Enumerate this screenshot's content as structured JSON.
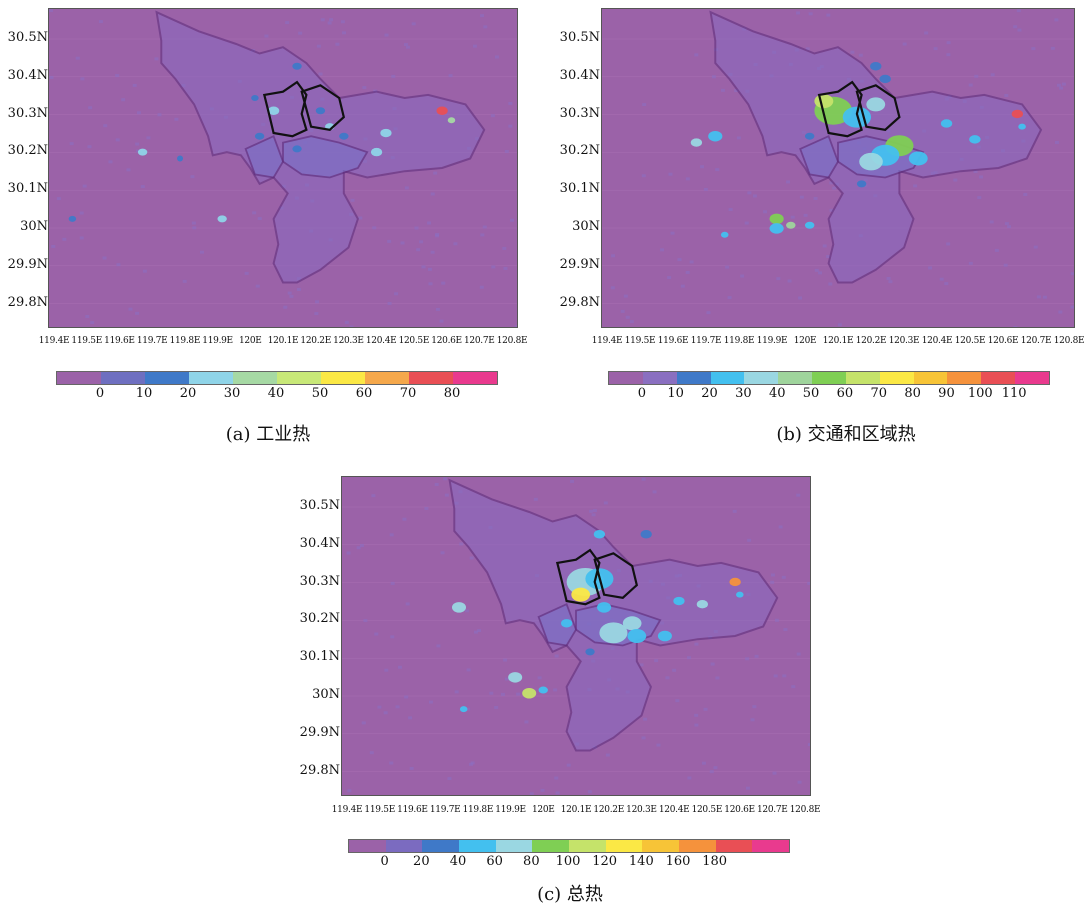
{
  "panels": [
    {
      "caption": "(a) 工业热",
      "y_labels": [
        "30.5N",
        "30.4N",
        "30.3N",
        "30.2N",
        "30.1N",
        "30N",
        "29.9N",
        "29.8N"
      ],
      "x_labels": [
        "119.4E",
        "119.5E",
        "119.6E",
        "119.7E",
        "119.8E",
        "119.9E",
        "120E",
        "120.1E",
        "120.2E",
        "120.3E",
        "120.4E",
        "120.5E",
        "120.6E",
        "120.7E",
        "120.8E"
      ],
      "colorbar_ticks": [
        "0",
        "10",
        "20",
        "30",
        "40",
        "50",
        "60",
        "70",
        "80"
      ],
      "colorbar_colors": [
        "#9b62a8",
        "#6e6fc0",
        "#3f79c8",
        "#8fd4e8",
        "#a6d9a4",
        "#c8e878",
        "#fbe845",
        "#f5a84b",
        "#e94f55",
        "#e93a8e"
      ]
    },
    {
      "caption": "(b) 交通和区域热",
      "y_labels": [
        "30.5N",
        "30.4N",
        "30.3N",
        "30.2N",
        "30.1N",
        "30N",
        "29.9N",
        "29.8N"
      ],
      "x_labels": [
        "119.4E",
        "119.5E",
        "119.6E",
        "119.7E",
        "119.8E",
        "119.9E",
        "120E",
        "120.1E",
        "120.2E",
        "120.3E",
        "120.4E",
        "120.5E",
        "120.6E",
        "120.7E",
        "120.8E"
      ],
      "colorbar_ticks": [
        "0",
        "10",
        "20",
        "30",
        "40",
        "50",
        "60",
        "70",
        "80",
        "90",
        "100",
        "110"
      ],
      "colorbar_colors": [
        "#9b62a8",
        "#8a6fc0",
        "#3f79c8",
        "#43c0ef",
        "#9ad7e2",
        "#9fd49c",
        "#7fcf54",
        "#c5e36a",
        "#fbe845",
        "#f7c437",
        "#f5923c",
        "#e94f55",
        "#e93a8e"
      ]
    },
    {
      "caption": "(c) 总热",
      "y_labels": [
        "30.5N",
        "30.4N",
        "30.3N",
        "30.2N",
        "30.1N",
        "30N",
        "29.9N",
        "29.8N"
      ],
      "x_labels": [
        "119.4E",
        "119.5E",
        "119.6E",
        "119.7E",
        "119.8E",
        "119.9E",
        "120E",
        "120.1E",
        "120.2E",
        "120.3E",
        "120.4E",
        "120.5E",
        "120.6E",
        "120.7E",
        "120.8E"
      ],
      "colorbar_ticks": [
        "0",
        "20",
        "40",
        "60",
        "80",
        "100",
        "120",
        "140",
        "160",
        "180"
      ],
      "colorbar_colors": [
        "#9b62a8",
        "#7b6bc0",
        "#3f79c8",
        "#43c0ef",
        "#9ad7e2",
        "#7fcf54",
        "#c5e36a",
        "#fbe845",
        "#f7c437",
        "#f5923c",
        "#e94f55",
        "#e93a8e"
      ]
    }
  ]
}
